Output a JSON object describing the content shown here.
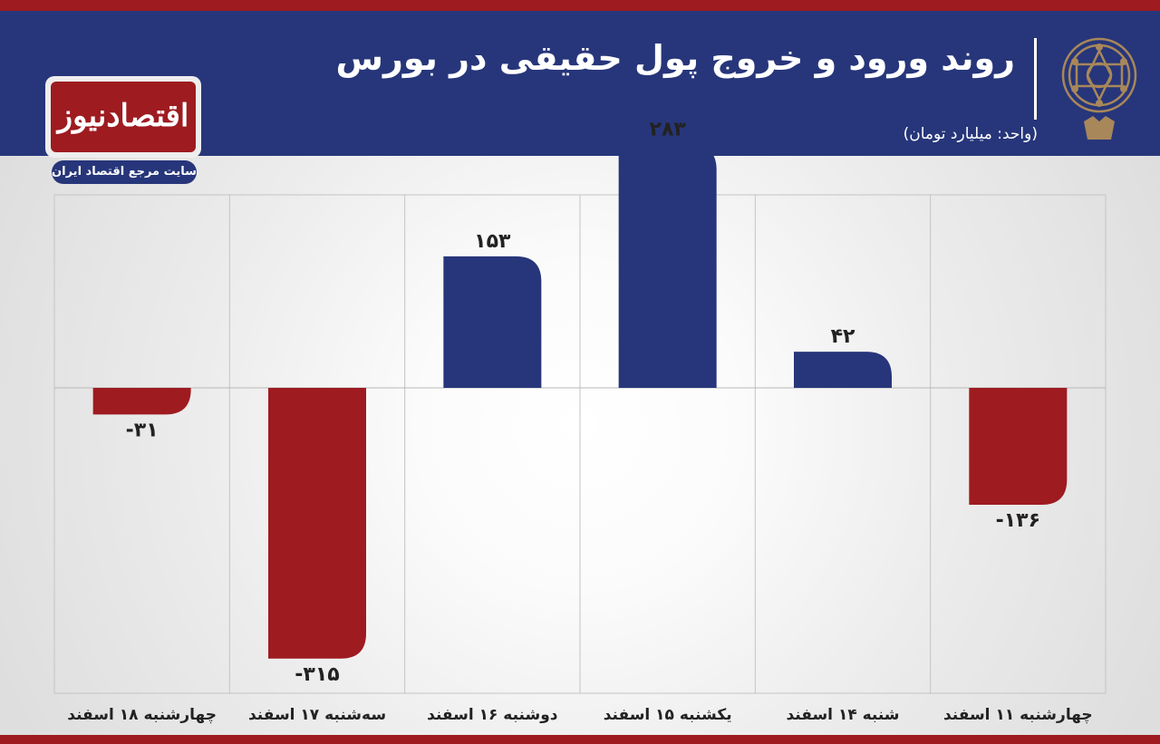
{
  "header": {
    "title": "روند ورود و خروج پول حقیقی در بورس",
    "unit": "(واحد: میلیارد تومان)"
  },
  "logo": {
    "name": "اقتصادنیوز",
    "tagline": "سایت مرجع اقتصاد ایران"
  },
  "colors": {
    "header_bg": "#27367a",
    "accent_red": "#9e1b20",
    "positive": "#27367a",
    "negative": "#9e1b20",
    "emblem": "#a8875a"
  },
  "chart_data": {
    "type": "bar",
    "categories": [
      "چهارشنبه ۱۱ اسفند",
      "شنبه ۱۴ اسفند",
      "یکشنبه ۱۵ اسفند",
      "دوشنبه ۱۶ اسفند",
      "سه‌شنبه ۱۷ اسفند",
      "چهارشنبه ۱۸ اسفند"
    ],
    "values": [
      -136,
      42,
      283,
      153,
      -315,
      -31
    ],
    "value_labels": [
      "-۱۳۶",
      "۴۲",
      "۲۸۳",
      "۱۵۳",
      "-۳۱۵",
      "-۳۱"
    ],
    "title": "روند ورود و خروج پول حقیقی در بورس",
    "ylabel": "",
    "xlabel": "",
    "grid": true,
    "ylim": [
      -340,
      340
    ]
  }
}
